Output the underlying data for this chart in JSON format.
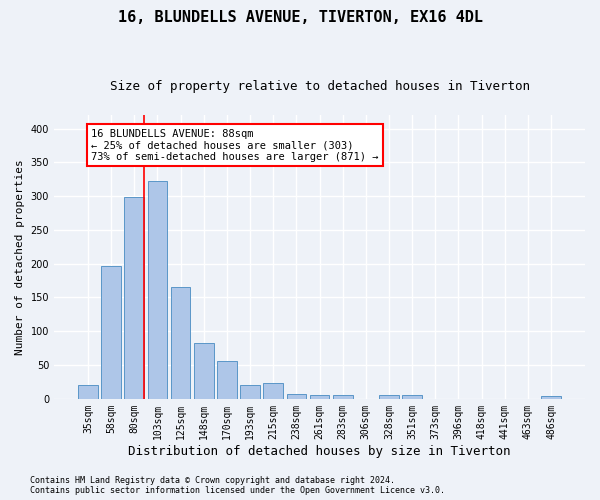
{
  "title": "16, BLUNDELLS AVENUE, TIVERTON, EX16 4DL",
  "subtitle": "Size of property relative to detached houses in Tiverton",
  "xlabel": "Distribution of detached houses by size in Tiverton",
  "ylabel": "Number of detached properties",
  "categories": [
    "35sqm",
    "58sqm",
    "80sqm",
    "103sqm",
    "125sqm",
    "148sqm",
    "170sqm",
    "193sqm",
    "215sqm",
    "238sqm",
    "261sqm",
    "283sqm",
    "306sqm",
    "328sqm",
    "351sqm",
    "373sqm",
    "396sqm",
    "418sqm",
    "441sqm",
    "463sqm",
    "486sqm"
  ],
  "values": [
    20,
    197,
    299,
    322,
    165,
    82,
    56,
    21,
    23,
    7,
    6,
    6,
    0,
    5,
    5,
    0,
    0,
    0,
    0,
    0,
    4
  ],
  "bar_color": "#aec6e8",
  "bar_edge_color": "#5a96c8",
  "red_line_x": 2.42,
  "annotation_line1": "16 BLUNDELLS AVENUE: 88sqm",
  "annotation_line2": "← 25% of detached houses are smaller (303)",
  "annotation_line3": "73% of semi-detached houses are larger (871) →",
  "annotation_box_color": "white",
  "annotation_box_edge_color": "red",
  "footnote1": "Contains HM Land Registry data © Crown copyright and database right 2024.",
  "footnote2": "Contains public sector information licensed under the Open Government Licence v3.0.",
  "bg_color": "#eef2f8",
  "plot_bg_color": "#eef2f8",
  "grid_color": "white",
  "ylim": [
    0,
    420
  ],
  "title_fontsize": 11,
  "subtitle_fontsize": 9,
  "ylabel_fontsize": 8,
  "xlabel_fontsize": 9,
  "tick_fontsize": 7,
  "annotation_fontsize": 7.5,
  "footnote_fontsize": 6
}
